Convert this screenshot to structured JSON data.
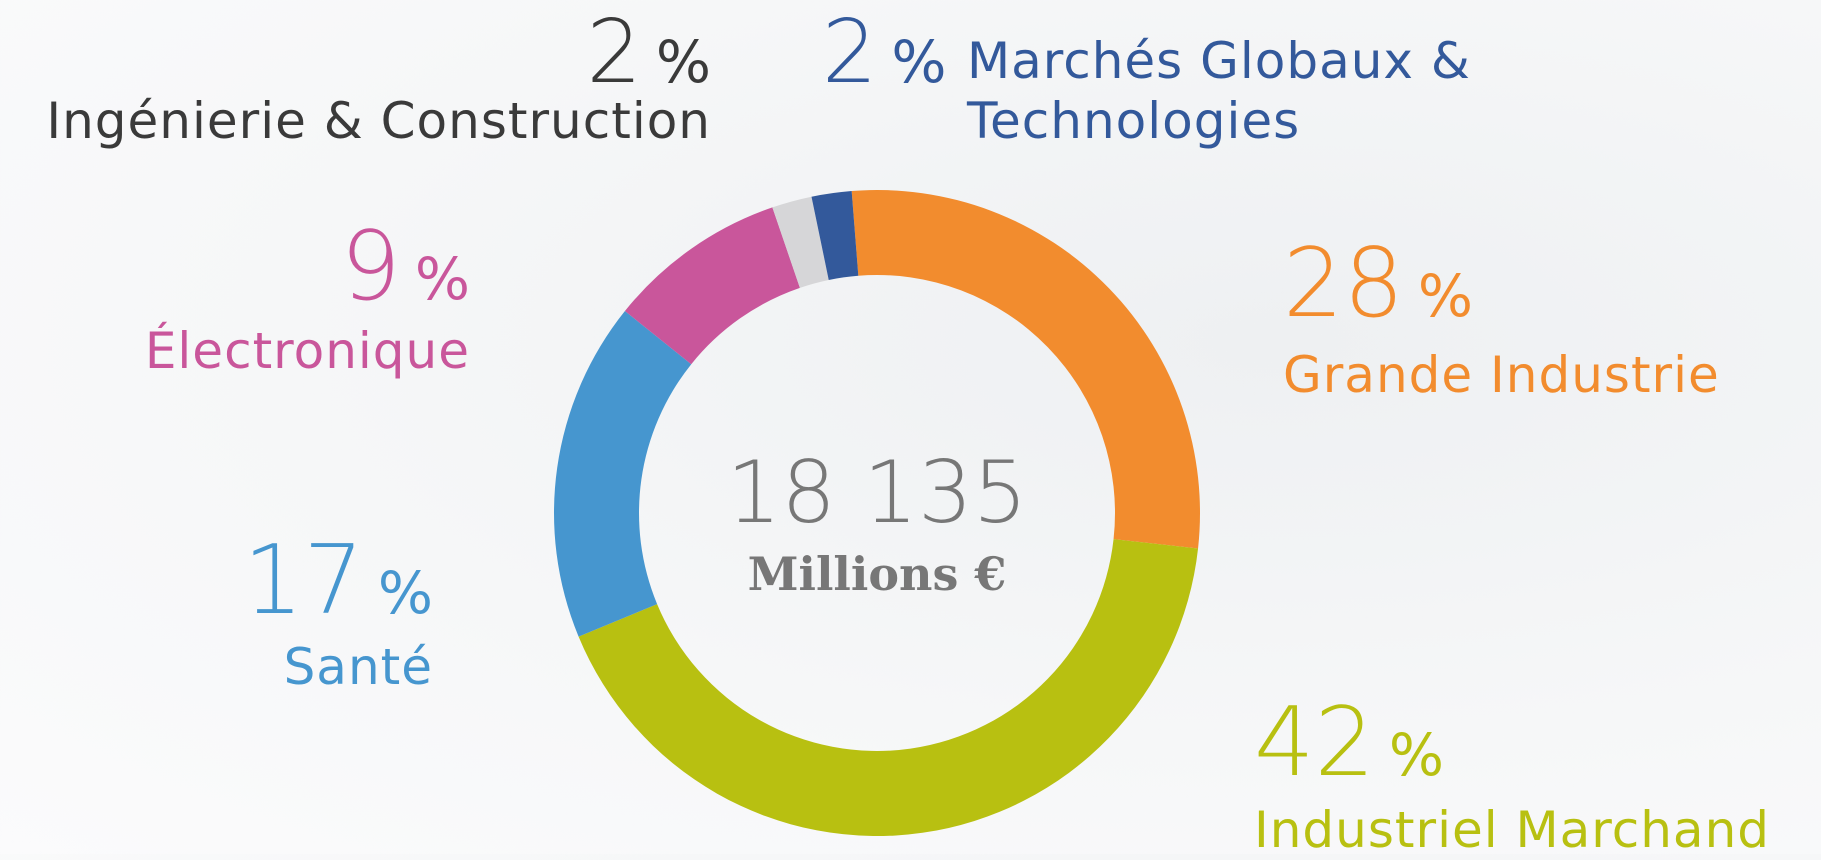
{
  "chart_data": {
    "type": "donut",
    "categories": [
      "Grande Industrie",
      "Industriel Marchand",
      "Santé",
      "Électronique",
      "Ingénierie & Construction",
      "Marchés Globaux & Technologies"
    ],
    "values": [
      28,
      42,
      17,
      9,
      2,
      2
    ],
    "unit": "%",
    "colors": [
      "#f28c2e",
      "#b8c011",
      "#4696cf",
      "#c9569b",
      "#d6d6d8",
      "#33599b"
    ],
    "label_colors": [
      "#f28c2e",
      "#b8c011",
      "#4696cf",
      "#c9569b",
      "#3a3a3a",
      "#33599b"
    ],
    "center_value": "18 135",
    "center_label": "Millions €"
  }
}
